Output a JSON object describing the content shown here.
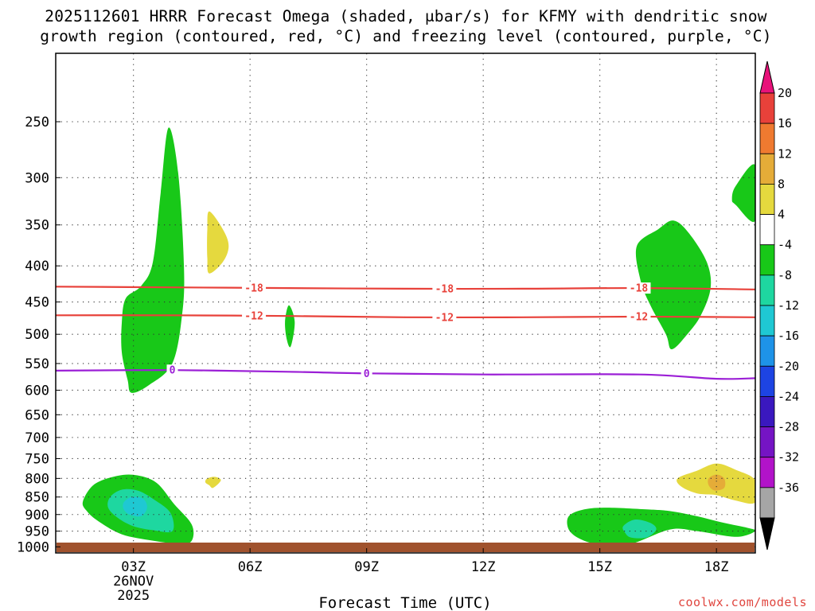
{
  "title": {
    "line1": "2025112601 HRRR Forecast Omega (shaded, μbar/s) for KFMY with dendritic snow",
    "line2": "growth region (contoured, red, °C) and freezing level (contoured, purple, °C)"
  },
  "watermark": "coolwx.com/models",
  "chart_data": {
    "type": "contour",
    "title": "2025112601 HRRR Forecast Omega (shaded, μbar/s) for KFMY with dendritic snow growth region (contoured, red, °C) and freezing level (contoured, purple, °C)",
    "xlabel": "Forecast Time (UTC)",
    "ylabel": "",
    "x_range_hours": [
      1,
      19
    ],
    "y_range_mb": [
      200,
      1020
    ],
    "y_scale": "log",
    "grid": true,
    "x_ticks": [
      {
        "hour": 3,
        "label": "03Z",
        "sub1": "26NOV",
        "sub2": "2025"
      },
      {
        "hour": 6,
        "label": "06Z",
        "sub1": "",
        "sub2": ""
      },
      {
        "hour": 9,
        "label": "09Z",
        "sub1": "",
        "sub2": ""
      },
      {
        "hour": 12,
        "label": "12Z",
        "sub1": "",
        "sub2": ""
      },
      {
        "hour": 15,
        "label": "15Z",
        "sub1": "",
        "sub2": ""
      },
      {
        "hour": 18,
        "label": "18Z",
        "sub1": "",
        "sub2": ""
      }
    ],
    "y_ticks": [
      250,
      300,
      350,
      400,
      450,
      500,
      550,
      600,
      650,
      700,
      750,
      800,
      850,
      900,
      950,
      1000
    ],
    "contours": [
      {
        "label": "-18",
        "color": "#e8413a",
        "points": [
          [
            1,
            428
          ],
          [
            4,
            429
          ],
          [
            7,
            430
          ],
          [
            10,
            431
          ],
          [
            13,
            431
          ],
          [
            16,
            430
          ],
          [
            19,
            432
          ]
        ],
        "label_at": [
          6.1,
          11,
          16.0
        ]
      },
      {
        "label": "-12",
        "color": "#e8413a",
        "points": [
          [
            1,
            470
          ],
          [
            4,
            470
          ],
          [
            7,
            471
          ],
          [
            10,
            473
          ],
          [
            13,
            473
          ],
          [
            16,
            472
          ],
          [
            19,
            473
          ]
        ],
        "label_at": [
          6.1,
          11,
          16.0
        ]
      },
      {
        "label": "0",
        "color": "#9b1fd6",
        "points": [
          [
            1,
            563
          ],
          [
            4,
            562
          ],
          [
            7,
            565
          ],
          [
            9,
            568
          ],
          [
            12,
            570
          ],
          [
            16,
            570
          ],
          [
            18,
            578
          ],
          [
            19,
            577
          ]
        ],
        "label_at": [
          4.0,
          9.0
        ]
      }
    ],
    "omega_regions": [
      {
        "level": "-8 to -4",
        "color": "#18c818",
        "points": [
          [
            2.7,
            482
          ],
          [
            2.8,
            445
          ],
          [
            3.2,
            427
          ],
          [
            3.5,
            395
          ],
          [
            3.7,
            315
          ],
          [
            3.9,
            255
          ],
          [
            4.15,
            295
          ],
          [
            4.3,
            400
          ],
          [
            4.25,
            470
          ],
          [
            4.0,
            550
          ],
          [
            3.4,
            590
          ],
          [
            2.95,
            605
          ],
          [
            2.85,
            580
          ],
          [
            2.7,
            530
          ]
        ]
      },
      {
        "level": "4 to 8",
        "color": "#e5d93e",
        "points": [
          [
            4.9,
            355
          ],
          [
            4.95,
            335
          ],
          [
            5.3,
            355
          ],
          [
            5.45,
            375
          ],
          [
            5.3,
            395
          ],
          [
            4.95,
            410
          ],
          [
            4.9,
            390
          ]
        ]
      },
      {
        "level": "-8 to -4",
        "color": "#18c818",
        "points": [
          [
            6.9,
            480
          ],
          [
            7.0,
            455
          ],
          [
            7.15,
            480
          ],
          [
            7.05,
            520
          ],
          [
            6.95,
            510
          ]
        ]
      },
      {
        "level": "-8 to -4",
        "color": "#18c818",
        "points": [
          [
            15.95,
            375
          ],
          [
            16.5,
            355
          ],
          [
            16.9,
            345
          ],
          [
            17.3,
            360
          ],
          [
            17.75,
            395
          ],
          [
            17.85,
            430
          ],
          [
            17.6,
            470
          ],
          [
            17.25,
            500
          ],
          [
            16.85,
            525
          ],
          [
            16.7,
            500
          ],
          [
            16.3,
            455
          ],
          [
            16.05,
            420
          ]
        ]
      },
      {
        "level": "-8 to -4",
        "color": "#18c818",
        "points": [
          [
            18.4,
            322
          ],
          [
            18.5,
            308
          ],
          [
            19,
            288
          ],
          [
            19,
            345
          ],
          [
            18.5,
            328
          ]
        ]
      },
      {
        "level": "4 to 8",
        "color": "#e5d93e",
        "points": [
          [
            4.85,
            810
          ],
          [
            4.9,
            800
          ],
          [
            5.1,
            796
          ],
          [
            5.25,
            805
          ],
          [
            5.05,
            825
          ],
          [
            4.95,
            818
          ]
        ]
      },
      {
        "level": "-8 to -4",
        "color": "#18c818",
        "points": [
          [
            1.7,
            862
          ],
          [
            2.0,
            815
          ],
          [
            2.6,
            793
          ],
          [
            3.1,
            792
          ],
          [
            3.6,
            812
          ],
          [
            4.05,
            870
          ],
          [
            4.5,
            930
          ],
          [
            4.5,
            980
          ],
          [
            4.2,
            990
          ],
          [
            3.5,
            980
          ],
          [
            2.7,
            960
          ],
          [
            2.1,
            920
          ],
          [
            1.8,
            890
          ]
        ]
      },
      {
        "level": "-12 to -8",
        "color": "#1ed7a0",
        "points": [
          [
            2.4,
            850
          ],
          [
            2.7,
            830
          ],
          [
            3.1,
            832
          ],
          [
            3.5,
            855
          ],
          [
            3.95,
            895
          ],
          [
            4.0,
            950
          ],
          [
            3.5,
            947
          ],
          [
            3.0,
            935
          ],
          [
            2.6,
            910
          ],
          [
            2.35,
            880
          ]
        ]
      },
      {
        "level": "-16 to -12",
        "color": "#1fc8d3",
        "points": [
          [
            2.75,
            865
          ],
          [
            2.95,
            850
          ],
          [
            3.25,
            855
          ],
          [
            3.35,
            880
          ],
          [
            3.2,
            905
          ],
          [
            2.9,
            900
          ],
          [
            2.75,
            885
          ]
        ]
      },
      {
        "level": "-8 to -4",
        "color": "#18c818",
        "points": [
          [
            14.2,
            905
          ],
          [
            14.6,
            885
          ],
          [
            15.2,
            880
          ],
          [
            16.2,
            885
          ],
          [
            16.8,
            890
          ],
          [
            17.5,
            905
          ],
          [
            18.2,
            925
          ],
          [
            18.8,
            940
          ],
          [
            19,
            950
          ],
          [
            18.5,
            968
          ],
          [
            17.5,
            950
          ],
          [
            16.8,
            945
          ],
          [
            15.8,
            990
          ],
          [
            15.0,
            992
          ],
          [
            14.5,
            975
          ],
          [
            14.2,
            945
          ]
        ]
      },
      {
        "level": "-12 to -8",
        "color": "#1ed7a0",
        "points": [
          [
            15.6,
            935
          ],
          [
            15.9,
            915
          ],
          [
            16.3,
            925
          ],
          [
            16.45,
            945
          ],
          [
            16.2,
            970
          ],
          [
            15.8,
            970
          ],
          [
            15.65,
            955
          ]
        ]
      },
      {
        "level": "4 to 8",
        "color": "#e5d93e",
        "points": [
          [
            17.0,
            800
          ],
          [
            17.5,
            780
          ],
          [
            18.0,
            762
          ],
          [
            18.5,
            778
          ],
          [
            19,
            805
          ],
          [
            19,
            865
          ],
          [
            18.5,
            860
          ],
          [
            18.0,
            845
          ],
          [
            17.5,
            840
          ],
          [
            17.1,
            822
          ]
        ]
      },
      {
        "level": "8 to 12",
        "color": "#e5ac38",
        "points": [
          [
            17.8,
            800
          ],
          [
            18.0,
            790
          ],
          [
            18.2,
            800
          ],
          [
            18.2,
            825
          ],
          [
            17.95,
            832
          ],
          [
            17.8,
            818
          ]
        ]
      }
    ],
    "terrain_color": "#a0522d",
    "colorbar": {
      "labels": [
        "20",
        "16",
        "12",
        "8",
        "4",
        "-4",
        "-8",
        "-12",
        "-16",
        "-20",
        "-24",
        "-28",
        "-32",
        "-36"
      ],
      "colors": [
        "#e8413a",
        "#ef7a30",
        "#e5ac38",
        "#e5d93e",
        "#ffffff",
        "#18c818",
        "#1ed7a0",
        "#1fc8d3",
        "#1e93e8",
        "#1d44e3",
        "#3a18bf",
        "#7514c4",
        "#b213c9",
        "#a6a6a6"
      ],
      "top_arrow_color": "#e8127a",
      "bottom_arrow_color": "#000000"
    }
  }
}
